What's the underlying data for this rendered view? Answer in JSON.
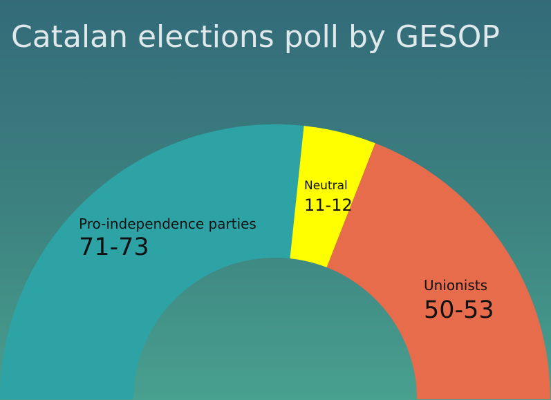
{
  "chart_data": {
    "type": "pie",
    "title": "Catalan elections poll by GESOP",
    "subtype": "half-donut (parliament seats)",
    "series": [
      {
        "name": "Pro-independence parties",
        "label": "71-73",
        "low": 71,
        "high": 73,
        "value": 72,
        "color": "#2ea3a5"
      },
      {
        "name": "Neutral",
        "label": "11-12",
        "low": 11,
        "high": 12,
        "value": 11.5,
        "color": "#ffff00"
      },
      {
        "name": "Unionists",
        "label": "50-53",
        "low": 50,
        "high": 53,
        "value": 51.5,
        "color": "#e66c4c"
      }
    ],
    "total_seats": 135
  }
}
